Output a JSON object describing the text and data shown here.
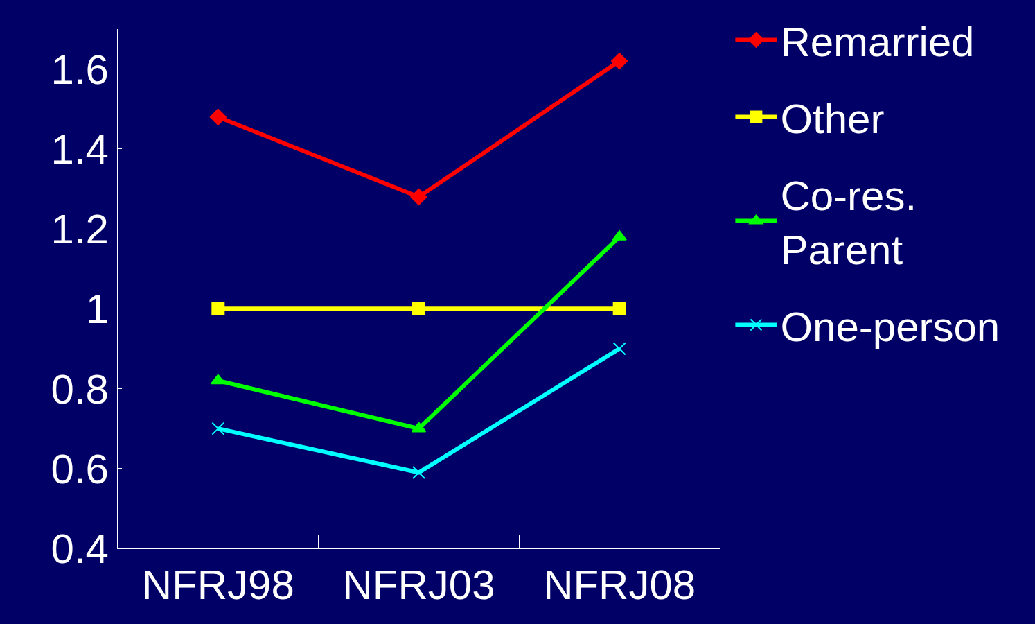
{
  "chart_data": {
    "type": "line",
    "categories": [
      "NFRJ98",
      "NFRJ03",
      "NFRJ08"
    ],
    "series": [
      {
        "name": "Remarried",
        "color": "#ff0000",
        "marker": "diamond",
        "values": [
          1.48,
          1.28,
          1.62
        ]
      },
      {
        "name": "Other",
        "color": "#ffff00",
        "marker": "square",
        "values": [
          1.0,
          1.0,
          1.0
        ]
      },
      {
        "name": "Co-res.\nParent",
        "color": "#00ff00",
        "marker": "triangle",
        "values": [
          0.82,
          0.7,
          1.18
        ]
      },
      {
        "name": "One-person",
        "color": "#00ffff",
        "marker": "cross",
        "values": [
          0.7,
          0.59,
          0.9
        ]
      }
    ],
    "ylim": [
      0.4,
      1.7
    ],
    "yticks": [
      0.4,
      0.6,
      0.8,
      {
        "value": 1,
        "label": "1"
      },
      1.2,
      1.4,
      1.6
    ],
    "grid": false,
    "legend": "top right",
    "line_style": "solid"
  }
}
